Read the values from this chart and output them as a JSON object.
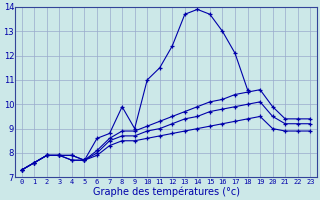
{
  "xlabel": "Graphe des températures (°c)",
  "x_hours": [
    0,
    1,
    2,
    3,
    4,
    5,
    6,
    7,
    8,
    9,
    10,
    11,
    12,
    13,
    14,
    15,
    16,
    17,
    18,
    19,
    20,
    21,
    22,
    23
  ],
  "main_line": [
    7.3,
    7.6,
    7.9,
    7.9,
    7.9,
    7.7,
    8.6,
    8.8,
    9.9,
    9.0,
    11.0,
    11.5,
    12.4,
    13.7,
    13.9,
    13.7,
    13.0,
    12.1,
    10.6,
    null,
    null,
    null,
    null,
    null
  ],
  "upper_flat": [
    7.3,
    7.6,
    7.9,
    7.9,
    7.9,
    7.7,
    8.1,
    8.6,
    8.9,
    8.9,
    9.1,
    9.3,
    9.5,
    9.7,
    9.9,
    10.1,
    10.2,
    10.4,
    10.5,
    10.6,
    9.9,
    9.4,
    9.4,
    9.4
  ],
  "mid_flat": [
    7.3,
    7.6,
    7.9,
    7.9,
    7.7,
    7.7,
    8.0,
    8.5,
    8.7,
    8.7,
    8.9,
    9.0,
    9.2,
    9.4,
    9.5,
    9.7,
    9.8,
    9.9,
    10.0,
    10.1,
    9.5,
    9.2,
    9.2,
    9.2
  ],
  "low_flat": [
    7.3,
    7.6,
    7.9,
    7.9,
    7.7,
    7.7,
    7.9,
    8.3,
    8.5,
    8.5,
    8.6,
    8.7,
    8.8,
    8.9,
    9.0,
    9.1,
    9.2,
    9.3,
    9.4,
    9.5,
    9.0,
    8.9,
    8.9,
    8.9
  ],
  "bg_color": "#cce8e8",
  "line_color": "#0000aa",
  "grid_color": "#99aacc",
  "ylim": [
    7,
    14
  ],
  "yticks": [
    7,
    8,
    9,
    10,
    11,
    12,
    13,
    14
  ]
}
